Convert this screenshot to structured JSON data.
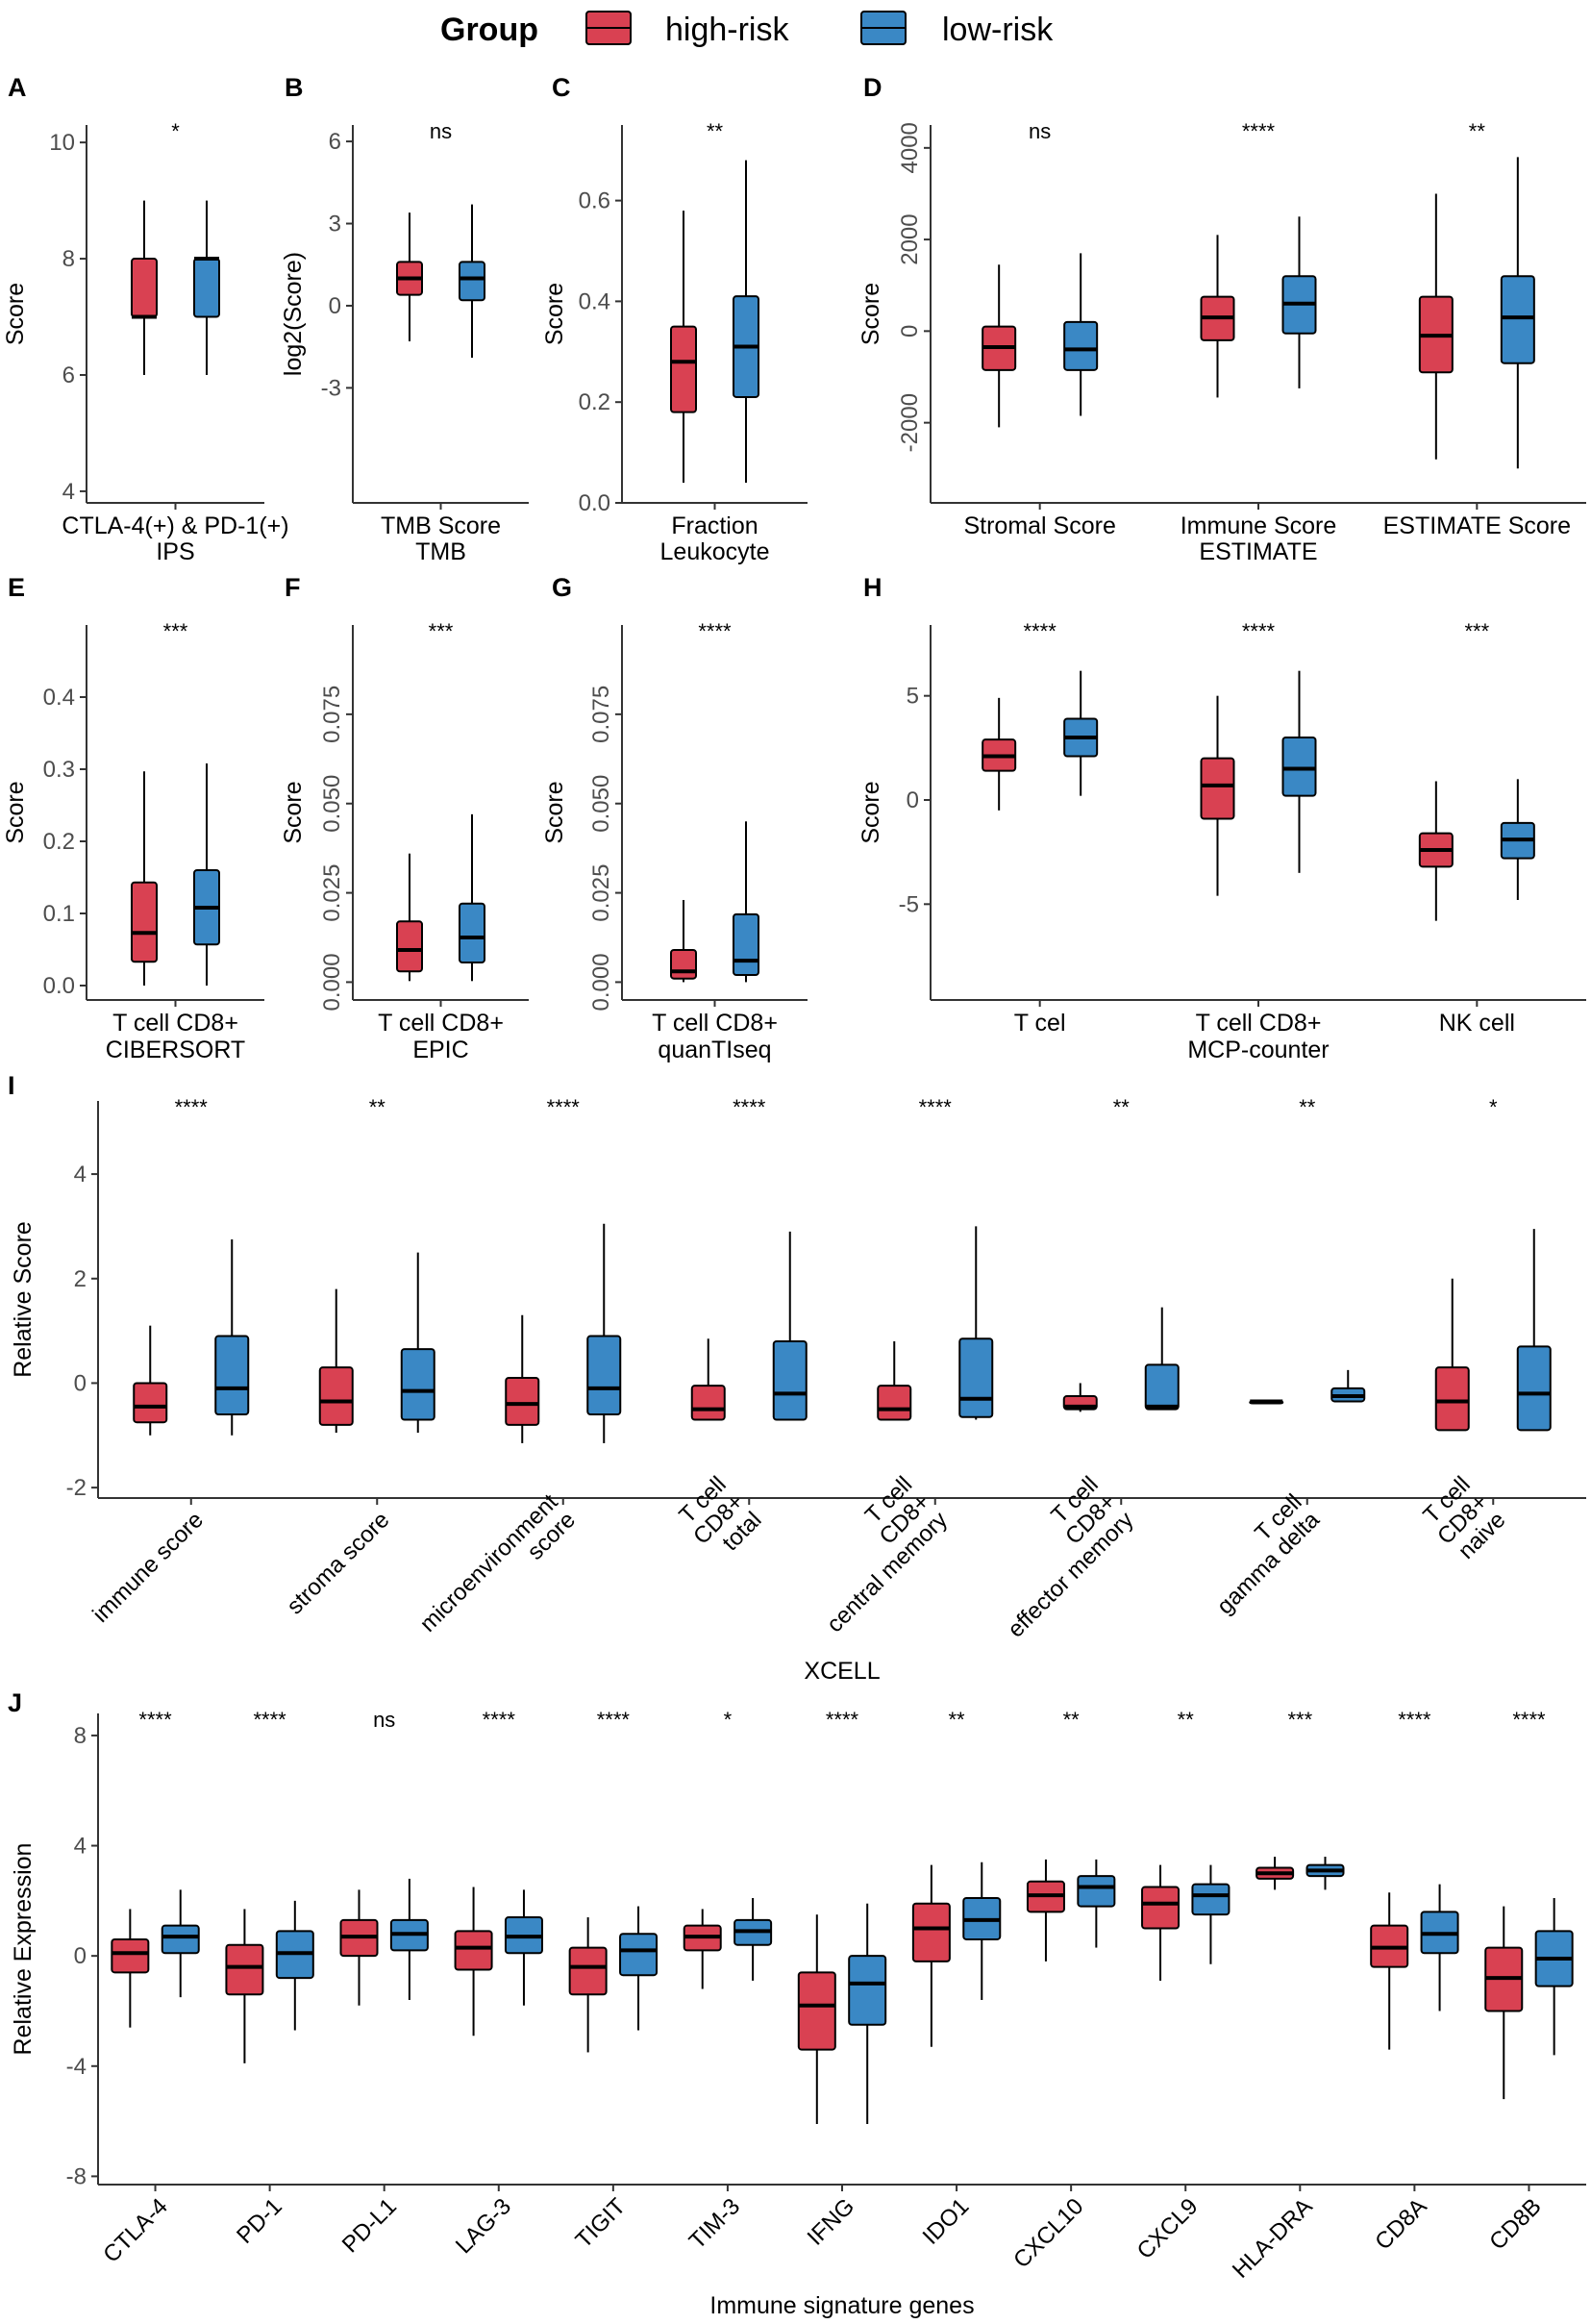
{
  "colors": {
    "high": "#d94152",
    "low": "#3a88c5",
    "axis": "#333333"
  },
  "legend": {
    "title": "Group",
    "items": [
      {
        "label": "high-risk",
        "color": "#d94152"
      },
      {
        "label": "low-risk",
        "color": "#3a88c5"
      }
    ]
  },
  "chart_data": [
    {
      "panel": "A",
      "type": "box",
      "ylabel": "Score",
      "xtitle": "IPS",
      "ylim": [
        3.8,
        10.3
      ],
      "yticks": [
        4,
        6,
        8,
        10
      ],
      "ytick_labels": [
        "4",
        "6",
        "8",
        "10"
      ],
      "ytick_rotate": false,
      "categories": [
        "CTLA-4(+) & PD-1(+)"
      ],
      "significance": [
        "*"
      ],
      "series": [
        {
          "name": "high-risk",
          "boxes": [
            [
              6,
              7,
              7,
              8,
              9
            ]
          ]
        },
        {
          "name": "low-risk",
          "boxes": [
            [
              6,
              7,
              8,
              8,
              9
            ]
          ]
        }
      ]
    },
    {
      "panel": "B",
      "type": "box",
      "ylabel": "log2(Score)",
      "xtitle": "TMB",
      "ylim": [
        -7.2,
        6.6
      ],
      "yticks": [
        -3,
        0,
        3,
        6
      ],
      "ytick_labels": [
        "-3",
        "0",
        "3",
        "6"
      ],
      "ytick_rotate": false,
      "categories": [
        "TMB Score"
      ],
      "significance": [
        "ns"
      ],
      "series": [
        {
          "name": "high-risk",
          "boxes": [
            [
              -1.3,
              0.4,
              1.0,
              1.6,
              3.4
            ]
          ]
        },
        {
          "name": "low-risk",
          "boxes": [
            [
              -1.9,
              0.2,
              1.0,
              1.6,
              3.7
            ]
          ]
        }
      ]
    },
    {
      "panel": "C",
      "type": "box",
      "ylabel": "Score",
      "xtitle": "Leukocyte",
      "ylim": [
        0,
        0.75
      ],
      "yticks": [
        0.0,
        0.2,
        0.4,
        0.6
      ],
      "ytick_labels": [
        "0.0",
        "0.2",
        "0.4",
        "0.6"
      ],
      "ytick_rotate": false,
      "categories": [
        "Fraction"
      ],
      "significance": [
        "**"
      ],
      "series": [
        {
          "name": "high-risk",
          "boxes": [
            [
              0.04,
              0.18,
              0.28,
              0.35,
              0.58
            ]
          ]
        },
        {
          "name": "low-risk",
          "boxes": [
            [
              0.04,
              0.21,
              0.31,
              0.41,
              0.68
            ]
          ]
        }
      ]
    },
    {
      "panel": "D",
      "type": "box",
      "ylabel": "Score",
      "xtitle": "ESTIMATE",
      "ylim": [
        -3750,
        4500
      ],
      "yticks": [
        -2000,
        0,
        2000,
        4000
      ],
      "ytick_labels": [
        "-2000",
        "0",
        "2000",
        "4000"
      ],
      "ytick_rotate": true,
      "categories": [
        "Stromal Score",
        "Immune Score",
        "ESTIMATE Score"
      ],
      "significance": [
        "ns",
        "****",
        "**"
      ],
      "series": [
        {
          "name": "high-risk",
          "boxes": [
            [
              -2100,
              -850,
              -350,
              100,
              1450
            ],
            [
              -1450,
              -200,
              300,
              750,
              2100
            ],
            [
              -2800,
              -900,
              -100,
              750,
              3000
            ]
          ]
        },
        {
          "name": "low-risk",
          "boxes": [
            [
              -1850,
              -850,
              -400,
              200,
              1700
            ],
            [
              -1250,
              -50,
              600,
              1200,
              2500
            ],
            [
              -3000,
              -700,
              300,
              1200,
              3800
            ]
          ]
        }
      ]
    },
    {
      "panel": "E",
      "type": "box",
      "ylabel": "Score",
      "xtitle": "CIBERSORT",
      "ylim": [
        -0.02,
        0.5
      ],
      "yticks": [
        0.0,
        0.1,
        0.2,
        0.3,
        0.4
      ],
      "ytick_labels": [
        "0.0",
        "0.1",
        "0.2",
        "0.3",
        "0.4"
      ],
      "ytick_rotate": false,
      "categories": [
        "T cell CD8+"
      ],
      "significance": [
        "***"
      ],
      "series": [
        {
          "name": "high-risk",
          "boxes": [
            [
              0.0,
              0.033,
              0.073,
              0.143,
              0.297
            ]
          ]
        },
        {
          "name": "low-risk",
          "boxes": [
            [
              0.0,
              0.057,
              0.108,
              0.16,
              0.308
            ]
          ]
        }
      ]
    },
    {
      "panel": "F",
      "type": "box",
      "ylabel": "Score",
      "xtitle": "EPIC",
      "ylim": [
        -0.005,
        0.1
      ],
      "yticks": [
        0.0,
        0.025,
        0.05,
        0.075
      ],
      "ytick_labels": [
        "0.000",
        "0.025",
        "0.050",
        "0.075"
      ],
      "ytick_rotate": true,
      "categories": [
        "T cell CD8+"
      ],
      "significance": [
        "***"
      ],
      "series": [
        {
          "name": "high-risk",
          "boxes": [
            [
              0.0003,
              0.003,
              0.009,
              0.017,
              0.036
            ]
          ]
        },
        {
          "name": "low-risk",
          "boxes": [
            [
              0.0003,
              0.0055,
              0.0125,
              0.022,
              0.047
            ]
          ]
        }
      ]
    },
    {
      "panel": "G",
      "type": "box",
      "ylabel": "Score",
      "xtitle": "quanTIseq",
      "ylim": [
        -0.005,
        0.1
      ],
      "yticks": [
        0.0,
        0.025,
        0.05,
        0.075
      ],
      "ytick_labels": [
        "0.000",
        "0.025",
        "0.050",
        "0.075"
      ],
      "ytick_rotate": true,
      "categories": [
        "T cell CD8+"
      ],
      "significance": [
        "****"
      ],
      "series": [
        {
          "name": "high-risk",
          "boxes": [
            [
              0.0,
              0.001,
              0.003,
              0.009,
              0.023
            ]
          ]
        },
        {
          "name": "low-risk",
          "boxes": [
            [
              0.0,
              0.002,
              0.006,
              0.019,
              0.045
            ]
          ]
        }
      ]
    },
    {
      "panel": "H",
      "type": "box",
      "ylabel": "Score",
      "xtitle": "MCP-counter",
      "ylim": [
        -9.6,
        8.4
      ],
      "yticks": [
        -5,
        0,
        5
      ],
      "ytick_labels": [
        "-5",
        "0",
        "5"
      ],
      "ytick_rotate": false,
      "categories": [
        "T cel",
        "T cell CD8+",
        "NK cell"
      ],
      "significance": [
        "****",
        "****",
        "***"
      ],
      "series": [
        {
          "name": "high-risk",
          "boxes": [
            [
              -0.5,
              1.4,
              2.1,
              2.9,
              4.9
            ],
            [
              -4.6,
              -0.9,
              0.7,
              2.0,
              5.0
            ],
            [
              -5.8,
              -3.2,
              -2.4,
              -1.6,
              0.9
            ]
          ]
        },
        {
          "name": "low-risk",
          "boxes": [
            [
              0.2,
              2.1,
              3.0,
              3.9,
              6.2
            ],
            [
              -3.5,
              0.2,
              1.5,
              3.0,
              6.2
            ],
            [
              -4.8,
              -2.8,
              -1.9,
              -1.1,
              1.0
            ]
          ]
        }
      ]
    },
    {
      "panel": "I",
      "type": "box",
      "ylabel": "Relative Score",
      "xtitle": "XCELL",
      "ylim": [
        -2.2,
        5.4
      ],
      "yticks": [
        -2,
        0,
        2,
        4
      ],
      "ytick_labels": [
        "-2",
        "0",
        "2",
        "4"
      ],
      "ytick_rotate": false,
      "categories": [
        "immune score",
        "stroma score",
        "microenvironment\nscore",
        "T cell\nCD8+\ntotal",
        "T cell\nCD8+\ncentral memory",
        "T cell\nCD8+\neffector memory",
        "T cell\ngamma delta",
        "T cell\nCD8+\nnaive"
      ],
      "significance": [
        "****",
        "**",
        "****",
        "****",
        "****",
        "**",
        "**",
        "*"
      ],
      "series": [
        {
          "name": "high-risk",
          "boxes": [
            [
              -1.0,
              -0.75,
              -0.45,
              0.0,
              1.1
            ],
            [
              -0.95,
              -0.8,
              -0.35,
              0.3,
              1.8
            ],
            [
              -1.15,
              -0.8,
              -0.4,
              0.1,
              1.3
            ],
            [
              -0.7,
              -0.7,
              -0.5,
              -0.05,
              0.85
            ],
            [
              -0.7,
              -0.7,
              -0.5,
              -0.05,
              0.8
            ],
            [
              -0.55,
              -0.5,
              -0.45,
              -0.25,
              0.0
            ],
            [
              -0.35,
              -0.35,
              -0.35,
              -0.35,
              -0.35
            ],
            [
              -0.9,
              -0.9,
              -0.35,
              0.3,
              2.0
            ]
          ]
        },
        {
          "name": "low-risk",
          "boxes": [
            [
              -1.0,
              -0.6,
              -0.1,
              0.9,
              2.75
            ],
            [
              -0.95,
              -0.7,
              -0.15,
              0.65,
              2.5
            ],
            [
              -1.15,
              -0.6,
              -0.1,
              0.9,
              3.05
            ],
            [
              -0.7,
              -0.7,
              -0.2,
              0.8,
              2.9
            ],
            [
              -0.7,
              -0.65,
              -0.3,
              0.85,
              3.0
            ],
            [
              -0.5,
              -0.5,
              -0.45,
              0.35,
              1.45
            ],
            [
              -0.35,
              -0.35,
              -0.25,
              -0.1,
              0.25
            ],
            [
              -0.9,
              -0.9,
              -0.2,
              0.7,
              2.95
            ]
          ]
        }
      ]
    },
    {
      "panel": "J",
      "type": "box",
      "ylabel": "Relative Expression",
      "xtitle": "Immune signature genes",
      "ylim": [
        -8.3,
        8.8
      ],
      "yticks": [
        -8,
        -4,
        0,
        4,
        8
      ],
      "ytick_labels": [
        "-8",
        "-4",
        "0",
        "4",
        "8"
      ],
      "ytick_rotate": false,
      "categories": [
        "CTLA-4",
        "PD-1",
        "PD-L1",
        "LAG-3",
        "TIGIT",
        "TIM-3",
        "IFNG",
        "IDO1",
        "CXCL10",
        "CXCL9",
        "HLA-DRA",
        "CD8A",
        "CD8B"
      ],
      "significance": [
        "****",
        "****",
        "ns",
        "****",
        "****",
        "*",
        "****",
        "**",
        "**",
        "**",
        "***",
        "****",
        "****"
      ],
      "series": [
        {
          "name": "high-risk",
          "boxes": [
            [
              -2.6,
              -0.6,
              0.1,
              0.6,
              1.7
            ],
            [
              -3.9,
              -1.4,
              -0.4,
              0.4,
              1.7
            ],
            [
              -1.8,
              0.0,
              0.7,
              1.3,
              2.4
            ],
            [
              -2.9,
              -0.5,
              0.3,
              0.9,
              2.5
            ],
            [
              -3.5,
              -1.4,
              -0.4,
              0.3,
              1.4
            ],
            [
              -1.2,
              0.2,
              0.7,
              1.1,
              1.7
            ],
            [
              -6.1,
              -3.4,
              -1.8,
              -0.6,
              1.5
            ],
            [
              -3.3,
              -0.2,
              1.0,
              1.9,
              3.3
            ],
            [
              -0.2,
              1.6,
              2.2,
              2.7,
              3.5
            ],
            [
              -0.9,
              1.0,
              1.9,
              2.5,
              3.3
            ],
            [
              2.4,
              2.8,
              3.0,
              3.2,
              3.6
            ],
            [
              -3.4,
              -0.4,
              0.3,
              1.1,
              2.3
            ],
            [
              -5.2,
              -2.0,
              -0.8,
              0.3,
              1.8
            ]
          ]
        },
        {
          "name": "low-risk",
          "boxes": [
            [
              -1.5,
              0.1,
              0.7,
              1.1,
              2.4
            ],
            [
              -2.7,
              -0.8,
              0.1,
              0.9,
              2.0
            ],
            [
              -1.6,
              0.2,
              0.8,
              1.3,
              2.8
            ],
            [
              -1.8,
              0.1,
              0.7,
              1.4,
              2.4
            ],
            [
              -2.7,
              -0.7,
              0.2,
              0.8,
              1.8
            ],
            [
              -0.9,
              0.4,
              0.9,
              1.3,
              2.1
            ],
            [
              -6.1,
              -2.5,
              -1.0,
              0.0,
              1.9
            ],
            [
              -1.6,
              0.6,
              1.3,
              2.1,
              3.4
            ],
            [
              0.3,
              1.8,
              2.5,
              2.9,
              3.5
            ],
            [
              -0.3,
              1.5,
              2.2,
              2.6,
              3.3
            ],
            [
              2.4,
              2.9,
              3.1,
              3.3,
              3.6
            ],
            [
              -2.0,
              0.1,
              0.8,
              1.6,
              2.6
            ],
            [
              -3.6,
              -1.1,
              -0.1,
              0.9,
              2.1
            ]
          ]
        }
      ]
    }
  ]
}
